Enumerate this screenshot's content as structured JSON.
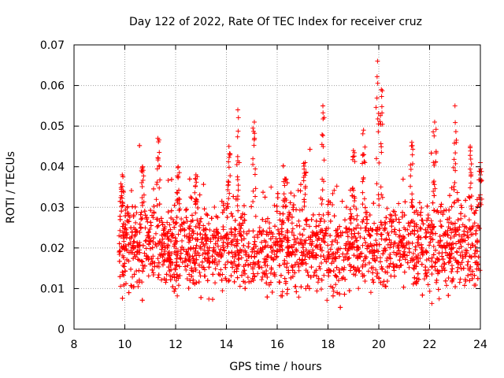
{
  "chart_data": {
    "type": "scatter",
    "title": "Day 122 of 2022, Rate Of TEC Index for receiver cruz",
    "xlabel": "GPS time / hours",
    "ylabel": "ROTI / TECUs",
    "xlim": [
      8,
      24
    ],
    "ylim": [
      0,
      0.07
    ],
    "xticks": [
      8,
      10,
      12,
      14,
      16,
      18,
      20,
      22,
      24
    ],
    "xtick_labels": [
      "8",
      "10",
      "12",
      "14",
      "16",
      "18",
      "20",
      "22",
      "24"
    ],
    "yticks": [
      0,
      0.01,
      0.02,
      0.03,
      0.04,
      0.05,
      0.06,
      0.07
    ],
    "ytick_labels": [
      "0",
      "0.01",
      "0.02",
      "0.03",
      "0.04",
      "0.05",
      "0.06",
      "0.07"
    ],
    "grid": true,
    "marker": "+",
    "color": "#ff0000",
    "series": [
      {
        "name": "ROTI",
        "x_range": [
          9.75,
          24.0
        ],
        "typical_band": [
          0.01,
          0.03
        ],
        "min_observed": 0.005,
        "spikes": [
          {
            "x": 9.9,
            "y": 0.038
          },
          {
            "x": 10.7,
            "y": 0.04
          },
          {
            "x": 11.3,
            "y": 0.047
          },
          {
            "x": 12.1,
            "y": 0.04
          },
          {
            "x": 12.8,
            "y": 0.038
          },
          {
            "x": 14.1,
            "y": 0.045
          },
          {
            "x": 14.45,
            "y": 0.054
          },
          {
            "x": 15.1,
            "y": 0.051
          },
          {
            "x": 16.3,
            "y": 0.037
          },
          {
            "x": 17.1,
            "y": 0.041
          },
          {
            "x": 17.8,
            "y": 0.055
          },
          {
            "x": 19.0,
            "y": 0.044
          },
          {
            "x": 19.4,
            "y": 0.049
          },
          {
            "x": 19.95,
            "y": 0.066
          },
          {
            "x": 20.1,
            "y": 0.059
          },
          {
            "x": 21.3,
            "y": 0.046
          },
          {
            "x": 22.2,
            "y": 0.051
          },
          {
            "x": 23.0,
            "y": 0.055
          },
          {
            "x": 23.6,
            "y": 0.045
          },
          {
            "x": 24.0,
            "y": 0.041
          }
        ]
      }
    ]
  }
}
